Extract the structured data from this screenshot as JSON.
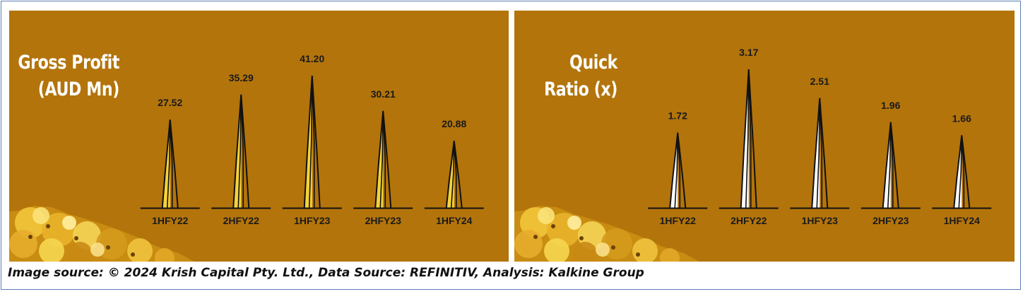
{
  "chart_data": [
    {
      "type": "bar",
      "title_lines": [
        "Gross Profit",
        "(AUD Mn)"
      ],
      "categories": [
        "1HFY22",
        "2HFY22",
        "1HFY23",
        "2HFY23",
        "1HFY24"
      ],
      "values": [
        27.52,
        35.29,
        41.2,
        30.21,
        20.88
      ],
      "value_labels": [
        "27.52",
        "35.29",
        "41.20",
        "30.21",
        "20.88"
      ],
      "bar_fill": "#f5d33a",
      "bar_style": "spike",
      "background": "#b3740b",
      "grid": false,
      "legend": "none"
    },
    {
      "type": "bar",
      "title_lines": [
        "Quick",
        "Ratio (x)"
      ],
      "categories": [
        "1HFY22",
        "2HFY22",
        "1HFY23",
        "2HFY23",
        "1HFY24"
      ],
      "values": [
        1.72,
        3.17,
        2.51,
        1.96,
        1.66
      ],
      "value_labels": [
        "1.72",
        "3.17",
        "2.51",
        "1.96",
        "1.66"
      ],
      "bar_fill": "#ffffff",
      "bar_style": "spike",
      "background": "#b3740b",
      "grid": false,
      "legend": "none"
    }
  ],
  "footer": {
    "source": "Image source: © 2024 Krish Capital Pty. Ltd., Data Source: REFINITIV, Analysis: Kalkine Group"
  },
  "colors": {
    "panel_background": "#b3740b",
    "frame_border": "#5b7fb8",
    "outline": "#111111",
    "title_text": "#ffffff"
  }
}
